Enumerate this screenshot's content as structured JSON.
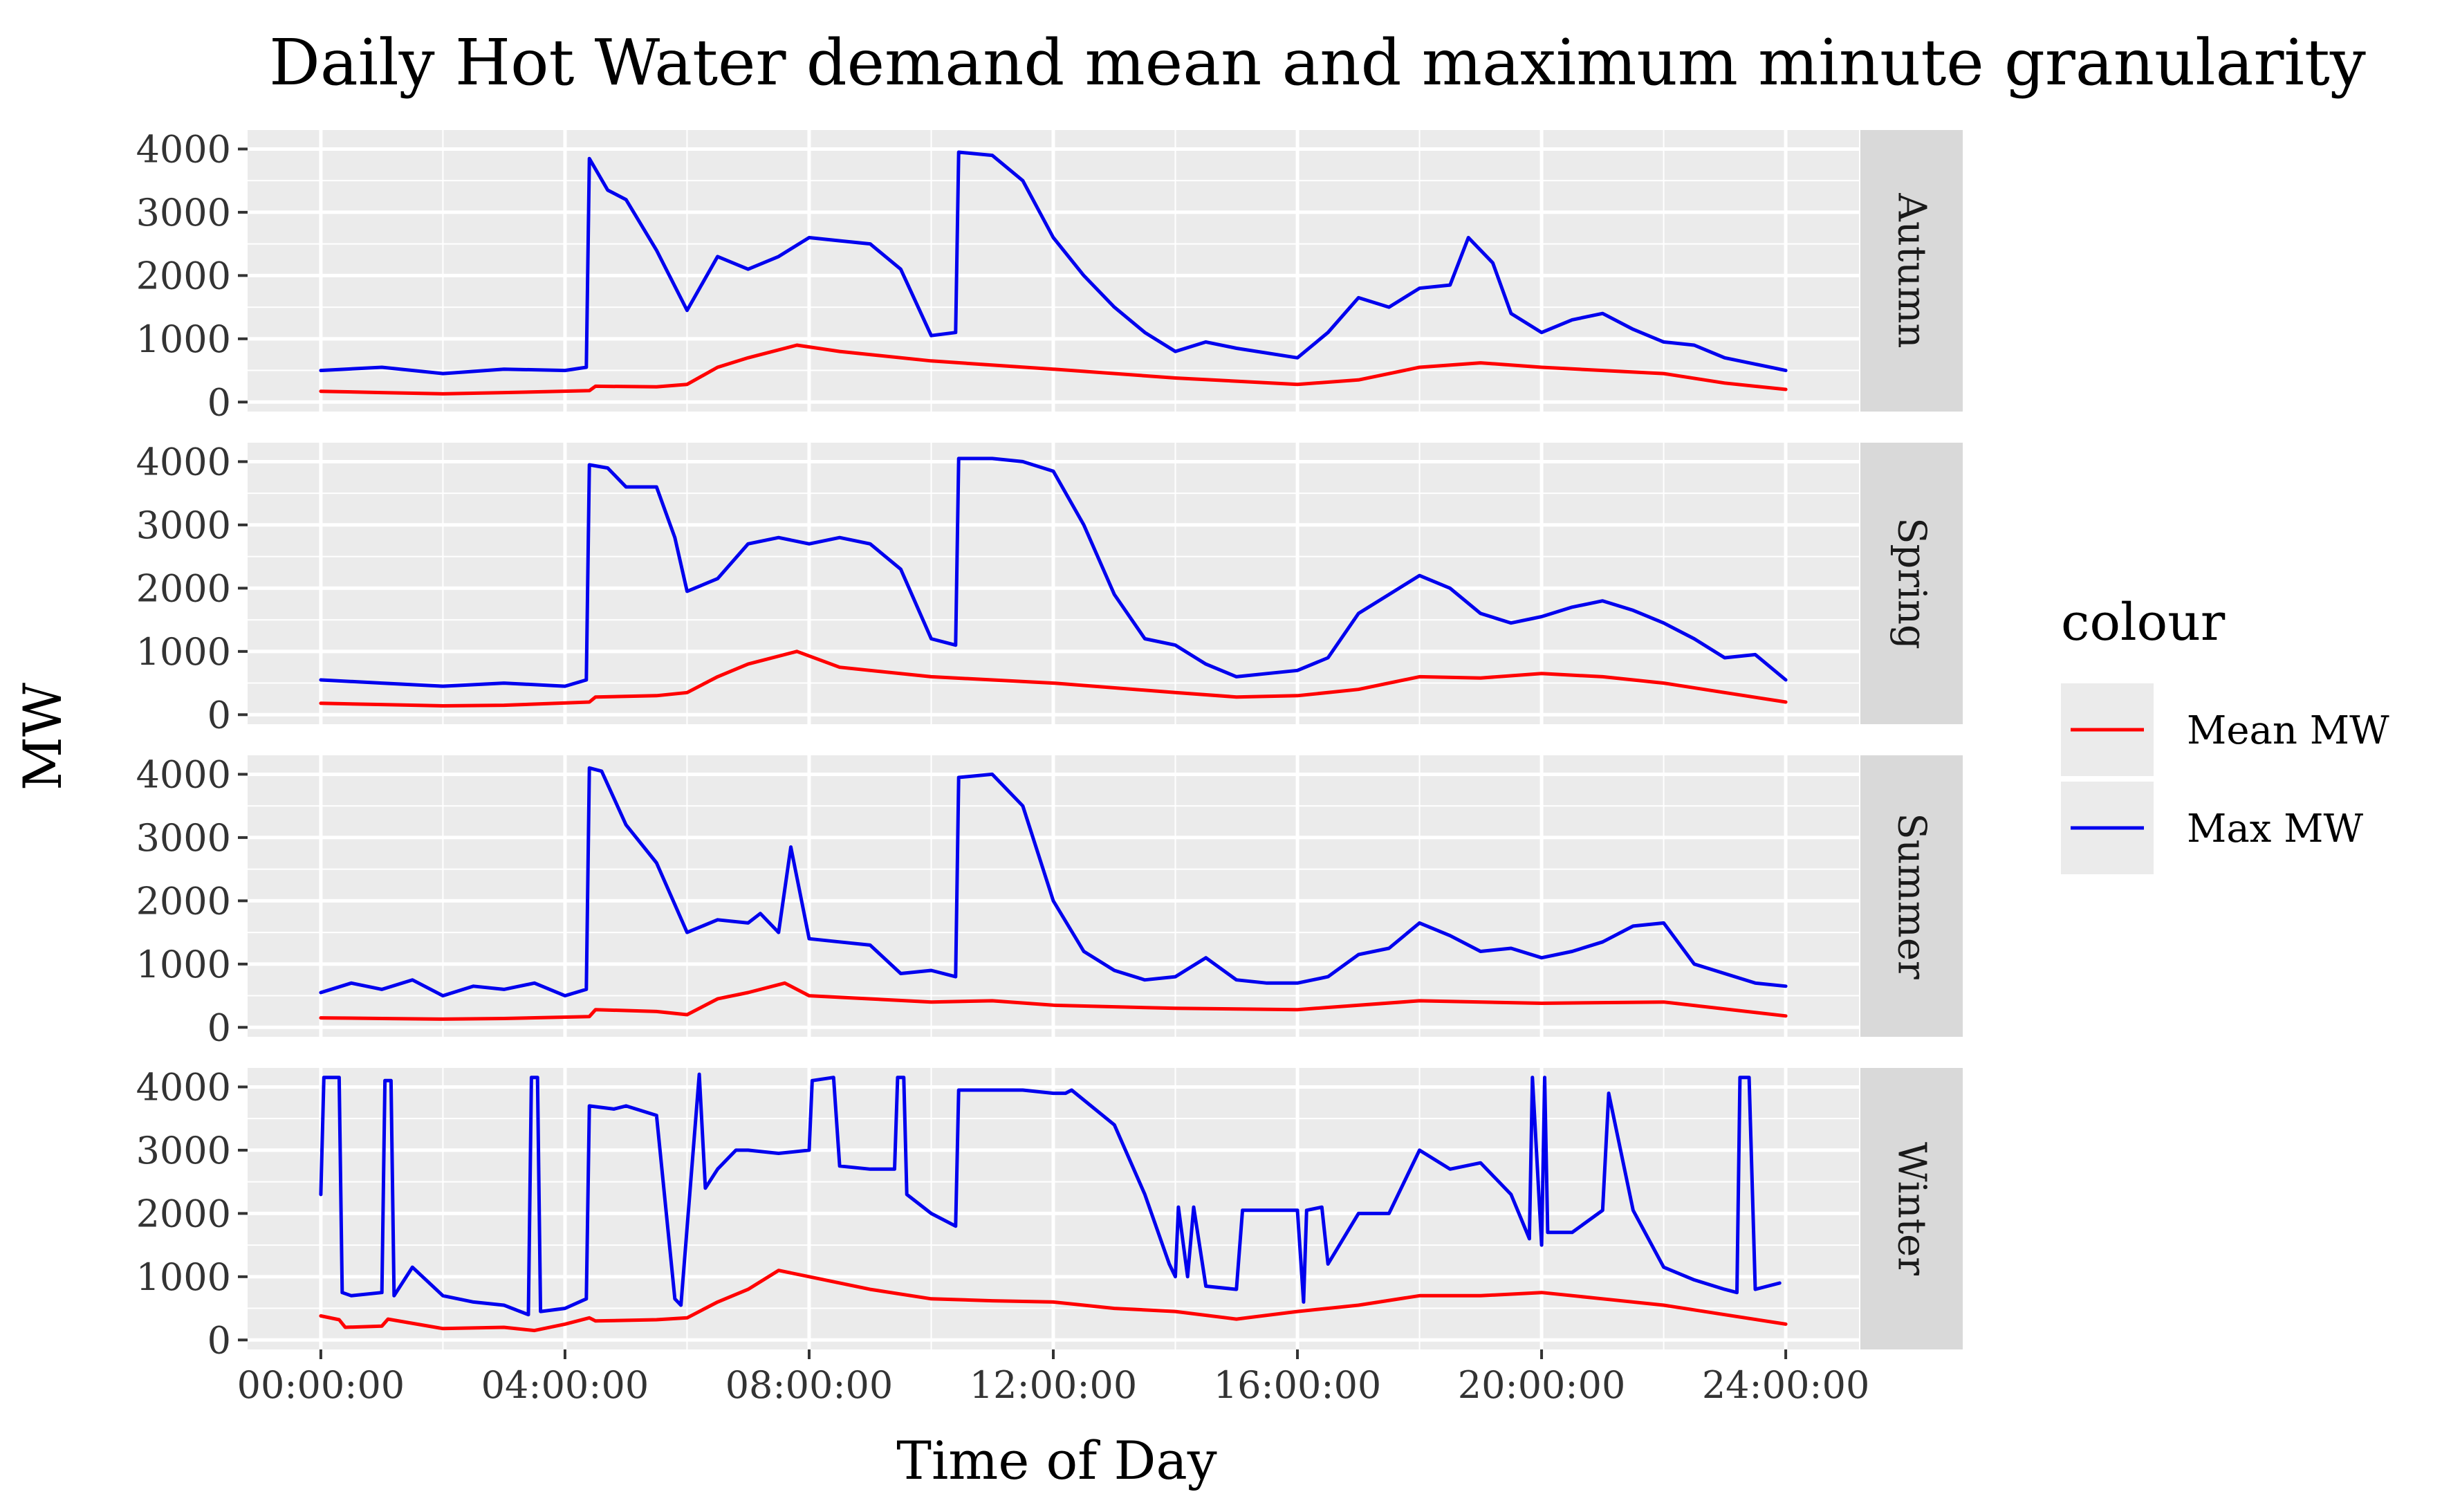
{
  "chart_data": {
    "type": "line",
    "title": "Daily Hot Water demand mean and maximum minute granularity",
    "xlabel": "Time of Day",
    "ylabel": "MW",
    "x_unit": "hours",
    "xlim": [
      -1.2,
      25.2
    ],
    "ylim": [
      -150,
      4300
    ],
    "x_ticks": [
      0,
      4,
      8,
      12,
      16,
      20,
      24
    ],
    "x_tick_labels": [
      "00:00:00",
      "04:00:00",
      "08:00:00",
      "12:00:00",
      "16:00:00",
      "20:00:00",
      "24:00:00"
    ],
    "y_ticks": [
      0,
      1000,
      2000,
      3000,
      4000
    ],
    "y_tick_labels": [
      "0",
      "1000",
      "2000",
      "3000",
      "4000"
    ],
    "grid": true,
    "legend": {
      "title": "colour",
      "position": "right",
      "entries": [
        {
          "label": "Mean MW",
          "color": "#ff0000"
        },
        {
          "label": "Max MW",
          "color": "#0000ee"
        }
      ]
    },
    "panels": [
      {
        "label": "Autumn",
        "series": [
          {
            "name": "Mean MW",
            "color": "#ff0000",
            "x": [
              0,
              1,
              2,
              3,
              4.4,
              4.5,
              5.5,
              6,
              6.5,
              7,
              7.8,
              8.5,
              10,
              12,
              14,
              16,
              17,
              18,
              19,
              20,
              21,
              22,
              23,
              24
            ],
            "y": [
              170,
              150,
              130,
              150,
              180,
              250,
              240,
              280,
              550,
              700,
              900,
              800,
              650,
              520,
              380,
              280,
              350,
              550,
              620,
              550,
              500,
              450,
              300,
              200
            ]
          },
          {
            "name": "Max MW",
            "color": "#0000ee",
            "x": [
              0,
              1,
              2,
              3,
              4,
              4.35,
              4.4,
              4.7,
              5,
              5.5,
              6,
              6.5,
              7,
              7.5,
              8,
              8.5,
              9,
              9.5,
              10,
              10.4,
              10.45,
              11,
              11.5,
              12,
              12.5,
              13,
              13.5,
              14,
              14.5,
              15,
              16,
              16.5,
              17,
              17.5,
              18,
              18.5,
              18.8,
              19.2,
              19.5,
              20,
              20.5,
              21,
              21.5,
              22,
              22.5,
              23,
              23.5,
              24
            ],
            "y": [
              500,
              550,
              450,
              520,
              500,
              550,
              3850,
              3350,
              3200,
              2400,
              1450,
              2300,
              2100,
              2300,
              2600,
              2550,
              2500,
              2100,
              1050,
              1100,
              3950,
              3900,
              3500,
              2600,
              2000,
              1500,
              1100,
              800,
              950,
              850,
              700,
              1100,
              1650,
              1500,
              1800,
              1850,
              2600,
              2200,
              1400,
              1100,
              1300,
              1400,
              1150,
              950,
              900,
              700,
              600,
              500
            ]
          }
        ]
      },
      {
        "label": "Spring",
        "series": [
          {
            "name": "Mean MW",
            "color": "#ff0000",
            "x": [
              0,
              1,
              2,
              3,
              4.4,
              4.5,
              5.5,
              6,
              6.5,
              7,
              7.8,
              8.5,
              10,
              12,
              14,
              15,
              16,
              17,
              18,
              19,
              20,
              21,
              22,
              23,
              24
            ],
            "y": [
              180,
              160,
              140,
              150,
              200,
              280,
              300,
              350,
              600,
              800,
              1000,
              750,
              600,
              500,
              350,
              280,
              300,
              400,
              600,
              580,
              650,
              600,
              500,
              350,
              200
            ]
          },
          {
            "name": "Max MW",
            "color": "#0000ee",
            "x": [
              0,
              1,
              2,
              3,
              4,
              4.35,
              4.4,
              4.7,
              5,
              5.5,
              5.8,
              6,
              6.5,
              7,
              7.5,
              8,
              8.5,
              9,
              9.5,
              10,
              10.4,
              10.45,
              11,
              11.5,
              12,
              12.5,
              13,
              13.5,
              14,
              14.5,
              15,
              15.5,
              16,
              16.5,
              17,
              17.5,
              18,
              18.5,
              19,
              19.5,
              20,
              20.5,
              21,
              21.5,
              22,
              22.5,
              23,
              23.5,
              24
            ],
            "y": [
              550,
              500,
              450,
              500,
              450,
              550,
              3950,
              3900,
              3600,
              3600,
              2800,
              1950,
              2150,
              2700,
              2800,
              2700,
              2800,
              2700,
              2300,
              1200,
              1100,
              4050,
              4050,
              4000,
              3850,
              3000,
              1900,
              1200,
              1100,
              800,
              600,
              650,
              700,
              900,
              1600,
              1900,
              2200,
              2000,
              1600,
              1450,
              1550,
              1700,
              1800,
              1650,
              1450,
              1200,
              900,
              950,
              550
            ]
          }
        ]
      },
      {
        "label": "Summer",
        "series": [
          {
            "name": "Mean MW",
            "color": "#ff0000",
            "x": [
              0,
              1,
              2,
              3,
              4.4,
              4.5,
              5.5,
              6,
              6.5,
              7,
              7.6,
              8,
              9,
              10,
              11,
              12,
              14,
              16,
              18,
              20,
              22,
              24
            ],
            "y": [
              150,
              140,
              130,
              140,
              170,
              280,
              250,
              200,
              450,
              550,
              700,
              500,
              450,
              400,
              420,
              350,
              300,
              280,
              420,
              380,
              400,
              180
            ]
          },
          {
            "name": "Max MW",
            "color": "#0000ee",
            "x": [
              0,
              0.5,
              1,
              1.5,
              2,
              2.5,
              3,
              3.5,
              4,
              4.35,
              4.4,
              4.6,
              5,
              5.5,
              6,
              6.5,
              7,
              7.2,
              7.5,
              7.7,
              8,
              8.5,
              9,
              9.5,
              10,
              10.4,
              10.45,
              11,
              11.5,
              12,
              12.5,
              13,
              13.5,
              14,
              14.5,
              15,
              15.5,
              16,
              16.5,
              17,
              17.5,
              18,
              18.5,
              19,
              19.5,
              20,
              20.5,
              21,
              21.5,
              22,
              22.5,
              23,
              23.5,
              24
            ],
            "y": [
              550,
              700,
              600,
              750,
              500,
              650,
              600,
              700,
              500,
              600,
              4100,
              4050,
              3200,
              2600,
              1500,
              1700,
              1650,
              1800,
              1500,
              2850,
              1400,
              1350,
              1300,
              850,
              900,
              800,
              3950,
              4000,
              3500,
              2000,
              1200,
              900,
              750,
              800,
              1100,
              750,
              700,
              700,
              800,
              1150,
              1250,
              1650,
              1450,
              1200,
              1250,
              1100,
              1200,
              1350,
              1600,
              1650,
              1000,
              850,
              700,
              650
            ]
          }
        ]
      },
      {
        "label": "Winter",
        "series": [
          {
            "name": "Mean MW",
            "color": "#ff0000",
            "x": [
              0,
              0.3,
              0.4,
              1,
              1.1,
              2,
              3,
              3.5,
              4,
              4.4,
              4.5,
              5.5,
              6,
              6.5,
              7,
              7.5,
              8,
              9,
              10,
              11,
              12,
              13,
              14,
              15,
              16,
              17,
              18,
              19,
              20,
              21,
              22,
              23,
              24
            ],
            "y": [
              380,
              320,
              200,
              220,
              330,
              180,
              200,
              150,
              250,
              350,
              300,
              320,
              350,
              600,
              800,
              1100,
              1000,
              800,
              650,
              620,
              600,
              500,
              450,
              330,
              450,
              550,
              700,
              700,
              750,
              650,
              550,
              400,
              250
            ]
          },
          {
            "name": "Max MW",
            "color": "#0000ee",
            "x": [
              0,
              0.05,
              0.3,
              0.35,
              0.5,
              1,
              1.05,
              1.15,
              1.2,
              1.5,
              2,
              2.5,
              3,
              3.4,
              3.45,
              3.55,
              3.6,
              4,
              4.35,
              4.4,
              4.8,
              5,
              5.5,
              5.8,
              5.9,
              6.2,
              6.3,
              6.5,
              6.8,
              7,
              7.5,
              8,
              8.05,
              8.4,
              8.5,
              9,
              9.4,
              9.45,
              9.55,
              9.6,
              10,
              10.4,
              10.45,
              11,
              11.5,
              12,
              12.2,
              12.3,
              13,
              13.5,
              13.9,
              14,
              14.05,
              14.2,
              14.3,
              14.5,
              15,
              15.1,
              15.5,
              16,
              16.1,
              16.15,
              16.4,
              16.5,
              17,
              17.5,
              18,
              18.5,
              19,
              19.5,
              19.8,
              19.85,
              20,
              20.05,
              20.1,
              20.5,
              21,
              21.1,
              21.5,
              22,
              22.5,
              23,
              23.2,
              23.25,
              23.4,
              23.5,
              23.9
            ],
            "y": [
              2300,
              4150,
              4150,
              750,
              700,
              750,
              4100,
              4100,
              700,
              1150,
              700,
              600,
              550,
              400,
              4150,
              4150,
              450,
              500,
              650,
              3700,
              3650,
              3700,
              3550,
              650,
              550,
              4200,
              2400,
              2700,
              3000,
              3000,
              2950,
              3000,
              4100,
              4150,
              2750,
              2700,
              2700,
              4150,
              4150,
              2300,
              2000,
              1800,
              3950,
              3950,
              3950,
              3900,
              3900,
              3950,
              3400,
              2300,
              1200,
              1000,
              2100,
              1000,
              2100,
              850,
              800,
              2050,
              2050,
              2050,
              600,
              2050,
              2100,
              1200,
              2000,
              2000,
              3000,
              2700,
              2800,
              2300,
              1600,
              4150,
              1500,
              4150,
              1700,
              1700,
              2050,
              3900,
              2050,
              1150,
              950,
              800,
              750,
              4150,
              4150,
              800,
              900
            ]
          }
        ]
      }
    ]
  }
}
